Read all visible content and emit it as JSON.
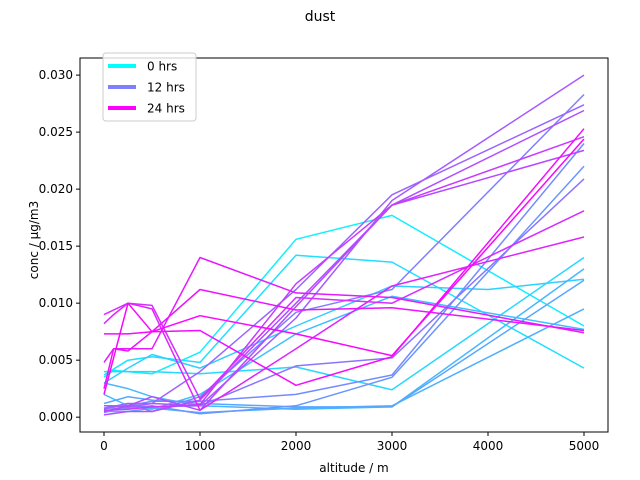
{
  "chart_data": {
    "type": "line",
    "title": "dust",
    "xlabel": "altitude / m",
    "ylabel": "conc / µg/m3",
    "xlim": [
      -250,
      5250
    ],
    "ylim": [
      -0.0013,
      0.0315
    ],
    "xticks": [
      0,
      1000,
      2000,
      3000,
      4000,
      5000
    ],
    "xtick_labels": [
      "0",
      "1000",
      "2000",
      "3000",
      "4000",
      "5000"
    ],
    "yticks": [
      0.0,
      0.005,
      0.01,
      0.015,
      0.02,
      0.025,
      0.03
    ],
    "ytick_labels": [
      "0.000",
      "0.005",
      "0.010",
      "0.015",
      "0.020",
      "0.025",
      "0.030"
    ],
    "grid": false,
    "legend": {
      "position": "top-left",
      "entries": [
        {
          "label": "0 hrs",
          "color": "#00ffff"
        },
        {
          "label": "12 hrs",
          "color": "#8080ff"
        },
        {
          "label": "24 hrs",
          "color": "#ff00ff"
        }
      ]
    },
    "series": [
      {
        "color": "#10efff",
        "points": [
          [
            0,
            0.0035
          ],
          [
            100,
            0.0041
          ],
          [
            500,
            0.0038
          ],
          [
            1000,
            0.0057
          ],
          [
            2000,
            0.0156
          ],
          [
            3000,
            0.0177
          ],
          [
            5000,
            0.008
          ]
        ]
      },
      {
        "color": "#20dfff",
        "points": [
          [
            0,
            0.0037
          ],
          [
            250,
            0.005
          ],
          [
            500,
            0.0053
          ],
          [
            1000,
            0.0048
          ],
          [
            2000,
            0.0142
          ],
          [
            3000,
            0.0136
          ],
          [
            5000,
            0.0043
          ]
        ]
      },
      {
        "color": "#30cfff",
        "points": [
          [
            0,
            0.003
          ],
          [
            250,
            0.0043
          ],
          [
            500,
            0.0055
          ],
          [
            1000,
            0.0043
          ],
          [
            2000,
            0.008
          ],
          [
            3000,
            0.0115
          ],
          [
            4000,
            0.0112
          ],
          [
            5000,
            0.0121
          ]
        ]
      },
      {
        "color": "#28d7ff",
        "points": [
          [
            0,
            0.004
          ],
          [
            500,
            0.004
          ],
          [
            1000,
            0.0038
          ],
          [
            2000,
            0.0044
          ],
          [
            3000,
            0.0024
          ],
          [
            5000,
            0.014
          ]
        ]
      },
      {
        "color": "#40bfff",
        "points": [
          [
            0,
            0.002
          ],
          [
            250,
            0.001
          ],
          [
            500,
            0.0007
          ],
          [
            1000,
            0.002
          ],
          [
            2000,
            0.0073
          ],
          [
            3000,
            0.0106
          ],
          [
            5000,
            0.0077
          ]
        ]
      },
      {
        "color": "#48b7ff",
        "points": [
          [
            0,
            0.003
          ],
          [
            250,
            0.0025
          ],
          [
            500,
            0.0018
          ],
          [
            1000,
            0.001
          ],
          [
            2000,
            0.0007
          ],
          [
            3000,
            0.0009
          ],
          [
            5000,
            0.013
          ]
        ]
      },
      {
        "color": "#50afff",
        "points": [
          [
            0,
            0.0005
          ],
          [
            250,
            0.0005
          ],
          [
            500,
            0.0008
          ],
          [
            1000,
            0.0004
          ],
          [
            2000,
            0.0008
          ],
          [
            3000,
            0.001
          ],
          [
            5000,
            0.0095
          ]
        ]
      },
      {
        "color": "#58a7ff",
        "points": [
          [
            0,
            0.0012
          ],
          [
            250,
            0.0018
          ],
          [
            500,
            0.0015
          ],
          [
            1000,
            0.0012
          ],
          [
            2000,
            0.0009
          ],
          [
            3000,
            0.0009
          ],
          [
            5000,
            0.012
          ]
        ]
      },
      {
        "color": "#6a95ff",
        "points": [
          [
            0,
            0.0008
          ],
          [
            250,
            0.0008
          ],
          [
            500,
            0.001
          ],
          [
            1000,
            0.0003
          ],
          [
            2000,
            0.001
          ],
          [
            3000,
            0.0035
          ],
          [
            5000,
            0.022
          ]
        ]
      },
      {
        "color": "#758aff",
        "points": [
          [
            0,
            0.0004
          ],
          [
            250,
            0.001
          ],
          [
            500,
            0.0014
          ],
          [
            1000,
            0.0014
          ],
          [
            2000,
            0.002
          ],
          [
            3000,
            0.0037
          ],
          [
            5000,
            0.024
          ]
        ]
      },
      {
        "color": "#7f80ff",
        "points": [
          [
            0,
            0.0008
          ],
          [
            250,
            0.0012
          ],
          [
            500,
            0.0005
          ],
          [
            1000,
            0.0018
          ],
          [
            2000,
            0.0092
          ],
          [
            3000,
            0.0112
          ],
          [
            5000,
            0.0283
          ]
        ]
      },
      {
        "color": "#8a75ff",
        "points": [
          [
            0,
            0.001
          ],
          [
            250,
            0.001
          ],
          [
            500,
            0.0009
          ],
          [
            1000,
            0.001
          ],
          [
            2000,
            0.0045
          ],
          [
            3000,
            0.0052
          ],
          [
            5000,
            0.0209
          ]
        ]
      },
      {
        "color": "#9a65ff",
        "points": [
          [
            0,
            0.0007
          ],
          [
            250,
            0.0012
          ],
          [
            500,
            0.0012
          ],
          [
            1000,
            0.004
          ],
          [
            2000,
            0.0112
          ],
          [
            3000,
            0.0195
          ],
          [
            5000,
            0.0274
          ]
        ]
      },
      {
        "color": "#a55aff",
        "points": [
          [
            0,
            0.001
          ],
          [
            250,
            0.0009
          ],
          [
            500,
            0.0012
          ],
          [
            1000,
            0.001
          ],
          [
            2000,
            0.0087
          ],
          [
            3000,
            0.019
          ],
          [
            5000,
            0.03
          ]
        ]
      },
      {
        "color": "#b04fff",
        "points": [
          [
            0,
            0.0002
          ],
          [
            250,
            0.0005
          ],
          [
            500,
            0.0005
          ],
          [
            1000,
            0.0015
          ],
          [
            2000,
            0.01
          ],
          [
            3000,
            0.0186
          ],
          [
            5000,
            0.0269
          ]
        ]
      },
      {
        "color": "#b848ff",
        "points": [
          [
            0,
            0.0005
          ],
          [
            250,
            0.001
          ],
          [
            500,
            0.0018
          ],
          [
            1000,
            0.0006
          ],
          [
            2000,
            0.0097
          ],
          [
            3000,
            0.0186
          ],
          [
            5000,
            0.0234
          ]
        ]
      },
      {
        "color": "#c83aff",
        "points": [
          [
            0,
            0.0006
          ],
          [
            250,
            0.0007
          ],
          [
            500,
            0.0009
          ],
          [
            1000,
            0.0011
          ],
          [
            2000,
            0.0117
          ],
          [
            3000,
            0.0186
          ],
          [
            5000,
            0.0246
          ]
        ]
      },
      {
        "color": "#d62eff",
        "points": [
          [
            0,
            0.009
          ],
          [
            250,
            0.01
          ],
          [
            500,
            0.0098
          ],
          [
            1000,
            0.0016
          ],
          [
            2000,
            0.0105
          ],
          [
            3000,
            0.01
          ],
          [
            5000,
            0.0181
          ]
        ]
      },
      {
        "color": "#de24ff",
        "points": [
          [
            0,
            0.0082
          ],
          [
            100,
            0.009
          ],
          [
            250,
            0.01
          ],
          [
            500,
            0.0095
          ],
          [
            1000,
            0.0006
          ],
          [
            2000,
            0.006
          ],
          [
            3000,
            0.0115
          ],
          [
            5000,
            0.0158
          ]
        ]
      },
      {
        "color": "#e41aff",
        "points": [
          [
            0,
            0.0048
          ],
          [
            100,
            0.006
          ],
          [
            250,
            0.006
          ],
          [
            500,
            0.006
          ],
          [
            1000,
            0.014
          ],
          [
            2000,
            0.0109
          ],
          [
            3000,
            0.0105
          ],
          [
            5000,
            0.0074
          ]
        ]
      },
      {
        "color": "#ec14ff",
        "points": [
          [
            0,
            0.0025
          ],
          [
            100,
            0.006
          ],
          [
            250,
            0.0058
          ],
          [
            500,
            0.0075
          ],
          [
            1000,
            0.0112
          ],
          [
            2000,
            0.0094
          ],
          [
            3000,
            0.0096
          ],
          [
            5000,
            0.0076
          ]
        ]
      },
      {
        "color": "#f30cff",
        "points": [
          [
            0,
            0.0073
          ],
          [
            250,
            0.0073
          ],
          [
            500,
            0.0075
          ],
          [
            1000,
            0.0076
          ],
          [
            2000,
            0.0028
          ],
          [
            3000,
            0.0053
          ],
          [
            5000,
            0.0253
          ]
        ]
      },
      {
        "color": "#fa05ff",
        "points": [
          [
            0,
            0.002
          ],
          [
            250,
            0.01
          ],
          [
            500,
            0.0075
          ],
          [
            1000,
            0.0089
          ],
          [
            2000,
            0.0073
          ],
          [
            3000,
            0.0054
          ],
          [
            5000,
            0.0244
          ]
        ]
      }
    ]
  }
}
